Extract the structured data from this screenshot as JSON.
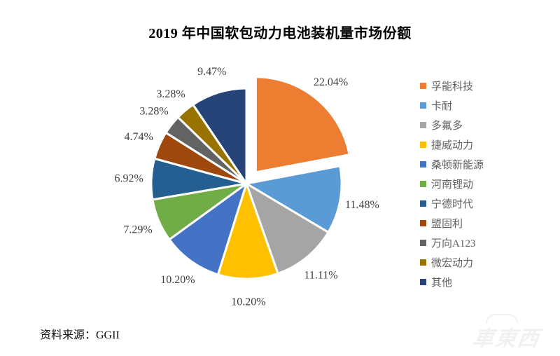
{
  "title": "2019 年中国软包动力电池装机量市场份额",
  "source_note": "资料来源：GGII",
  "watermark": "車東西",
  "chart_data": {
    "type": "pie",
    "title": "2019 年中国软包动力电池装机量市场份额",
    "unit": "%",
    "direction": "clockwise",
    "start_angle_deg": 0,
    "legend_position": "right",
    "exploded_index": 0,
    "categories": [
      "孚能科技",
      "卡耐",
      "多氟多",
      "捷威动力",
      "桑顿新能源",
      "河南锂动",
      "宁德时代",
      "盟固利",
      "万向A123",
      "微宏动力",
      "其他"
    ],
    "values": [
      22.04,
      11.48,
      11.11,
      10.2,
      10.2,
      7.29,
      6.92,
      4.74,
      3.28,
      3.28,
      9.47
    ],
    "labels": [
      "22.04%",
      "11.48%",
      "11.11%",
      "10.20%",
      "10.20%",
      "7.29%",
      "6.92%",
      "4.74%",
      "3.28%",
      "3.28%",
      "9.47%"
    ],
    "colors": [
      "#ED7D31",
      "#5B9BD5",
      "#A5A5A5",
      "#FFC000",
      "#4472C4",
      "#70AD47",
      "#255E91",
      "#9E480E",
      "#636363",
      "#997300",
      "#264478"
    ],
    "slice_border_color": "#ffffff",
    "label_color": "#3d3d3d"
  }
}
